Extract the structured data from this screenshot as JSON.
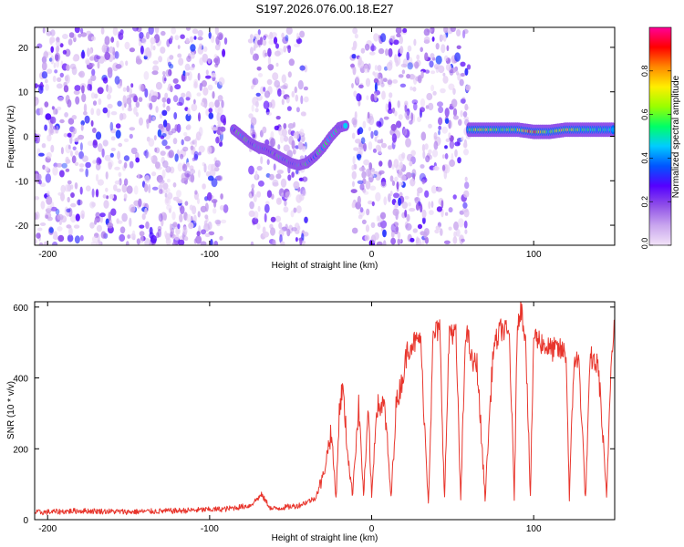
{
  "title": "S197.2026.076.00.18.E27",
  "colors": {
    "snr_line": "#e8352c",
    "colorbar_stops": [
      "#f2e3f8",
      "#c9a6ee",
      "#9050e8",
      "#5500ff",
      "#0055ff",
      "#00ccff",
      "#00ff66",
      "#99ff00",
      "#ffee00",
      "#ff8800",
      "#ff0000",
      "#ff0099"
    ]
  },
  "chart_data": [
    {
      "type": "heatmap",
      "title": "S197.2026.076.00.18.E27",
      "xlabel": "Height of straight line (km)",
      "ylabel": "Frequency (Hz)",
      "xlim": [
        -208,
        150
      ],
      "ylim": [
        -24.5,
        24.5
      ],
      "xticks": [
        -200,
        -100,
        0,
        100
      ],
      "yticks": [
        -20,
        -10,
        0,
        10,
        20
      ],
      "noise_regions_km": [
        [
          -208,
          -90
        ],
        [
          -75,
          -40
        ],
        [
          -12,
          60
        ]
      ],
      "signal_trace": {
        "x": [
          -85,
          -80,
          -75,
          -70,
          -65,
          -60,
          -55,
          -50,
          -45,
          -40,
          -35,
          -30,
          -25,
          -20,
          -15
        ],
        "y": [
          1.5,
          0,
          -1.5,
          -2.5,
          -3,
          -4,
          -5,
          -6,
          -6.5,
          -6,
          -4.5,
          -2.5,
          0,
          2,
          2.5
        ]
      },
      "band": {
        "x": [
          60,
          70,
          80,
          90,
          100,
          110,
          120,
          130,
          140,
          150
        ],
        "y": [
          1.5,
          1.5,
          1.5,
          1.5,
          1,
          1,
          1.5,
          1.5,
          1.5,
          1.5
        ],
        "peak_amplitude": [
          0.6,
          0.8,
          0.6,
          0.7,
          0.95,
          0.6,
          0.8,
          0.6,
          0.55,
          0.5
        ]
      },
      "colorbar": {
        "label": "Normalized spectral amplitude",
        "range": [
          0,
          1
        ],
        "ticks": [
          0.0,
          0.2,
          0.4,
          0.6,
          0.8
        ],
        "tick_labels": [
          "0.0",
          "0.2",
          "0.4",
          "0.6",
          "0.8"
        ]
      }
    },
    {
      "type": "line",
      "xlabel": "Height of straight line (km)",
      "ylabel": "SNR (10 * v/v)",
      "xlim": [
        -208,
        150
      ],
      "ylim": [
        0,
        615
      ],
      "xticks": [
        -200,
        -100,
        0,
        100
      ],
      "yticks": [
        0,
        200,
        400,
        600
      ],
      "series": [
        {
          "name": "SNR",
          "x": [
            -208,
            -180,
            -150,
            -120,
            -90,
            -75,
            -68,
            -62,
            -45,
            -35,
            -30,
            -25,
            -22,
            -20,
            -18,
            -15,
            -12,
            -8,
            -5,
            -2,
            0,
            3,
            8,
            12,
            15,
            18,
            20,
            22,
            25,
            28,
            30,
            35,
            38,
            42,
            45,
            48,
            52,
            55,
            58,
            60,
            62,
            65,
            70,
            75,
            80,
            85,
            88,
            90,
            92,
            95,
            98,
            100,
            105,
            110,
            115,
            120,
            122,
            125,
            128,
            132,
            135,
            140,
            145,
            148,
            150
          ],
          "y": [
            20,
            25,
            22,
            25,
            30,
            40,
            70,
            30,
            40,
            60,
            120,
            250,
            60,
            300,
            380,
            200,
            70,
            320,
            70,
            300,
            60,
            320,
            320,
            60,
            320,
            380,
            420,
            480,
            500,
            500,
            520,
            50,
            520,
            540,
            60,
            540,
            520,
            50,
            540,
            500,
            440,
            440,
            60,
            480,
            540,
            520,
            60,
            560,
            600,
            520,
            60,
            520,
            500,
            480,
            480,
            470,
            60,
            460,
            440,
            60,
            460,
            430,
            60,
            480,
            560
          ]
        }
      ]
    }
  ]
}
